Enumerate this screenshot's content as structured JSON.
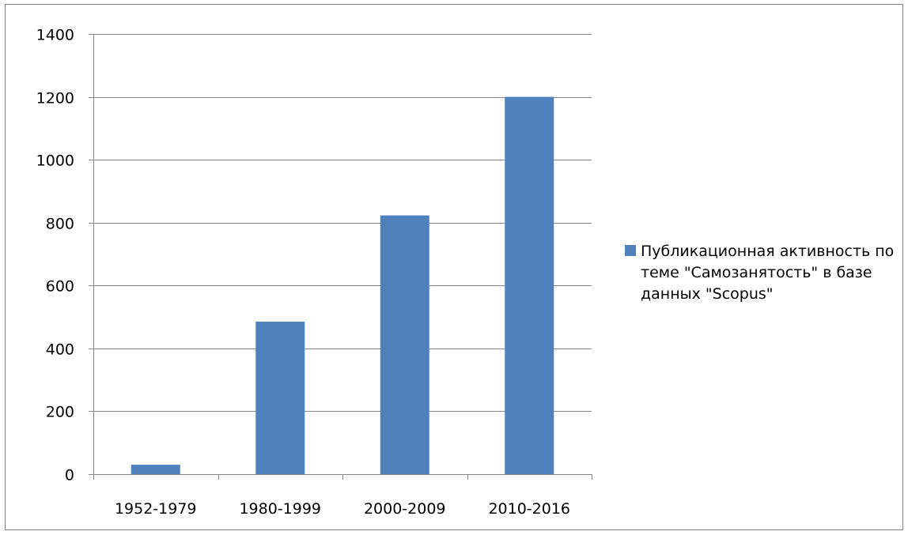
{
  "chart_data": {
    "type": "bar",
    "categories": [
      "1952-1979",
      "1980-1999",
      "2000-2009",
      "2010-2016"
    ],
    "series": [
      {
        "name": "Публикационная активность по теме \"Самозанятость\" в базе данных \"Scopus\"",
        "values": [
          30,
          485,
          823,
          1200
        ],
        "color": "#4F81BD"
      }
    ],
    "y_ticks": [
      "0",
      "200",
      "400",
      "600",
      "800",
      "1000",
      "1200",
      "1400"
    ],
    "ylim": [
      0,
      1400
    ],
    "grid": true,
    "legend_position": "right",
    "title": "",
    "xlabel": "",
    "ylabel": ""
  }
}
